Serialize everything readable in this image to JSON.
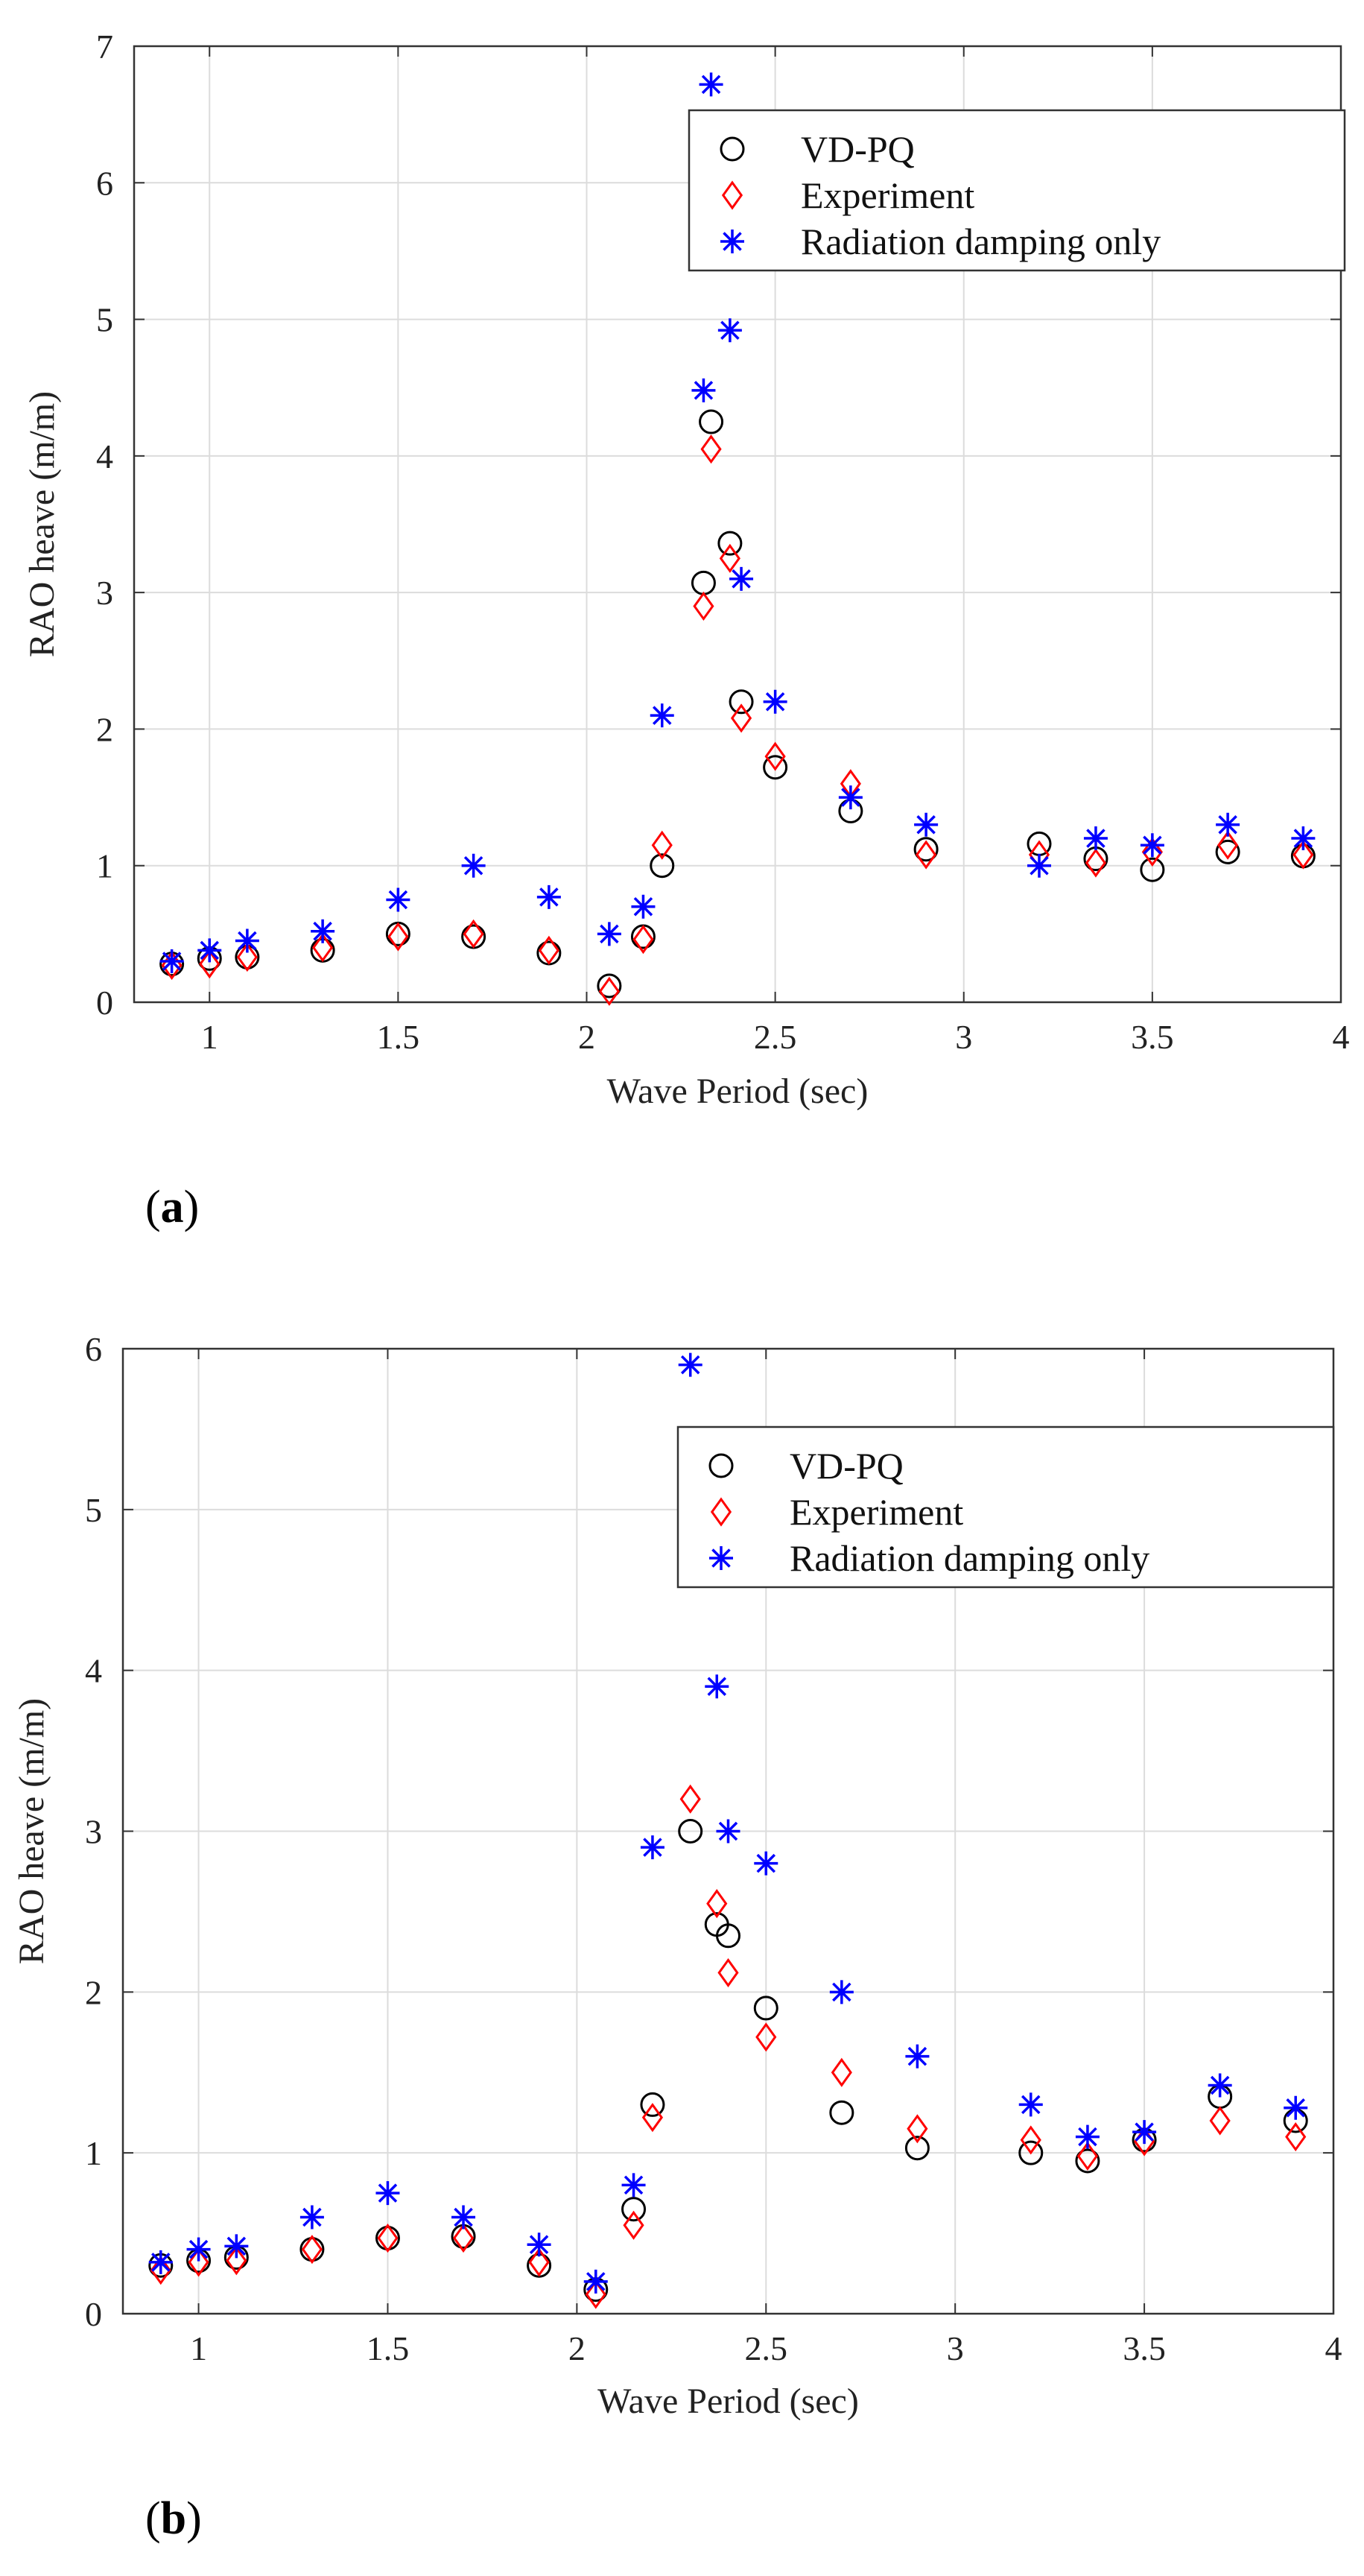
{
  "chart_data": [
    {
      "type": "scatter",
      "panel_label": "a",
      "xlabel": "Wave Period (sec)",
      "ylabel": "RAO heave (m/m)",
      "xlim": [
        0.8,
        4
      ],
      "ylim": [
        0,
        7
      ],
      "xticks": [
        1,
        1.5,
        2,
        2.5,
        3,
        3.5,
        4
      ],
      "yticks": [
        0,
        1,
        2,
        3,
        4,
        5,
        6,
        7
      ],
      "grid": true,
      "legend_position": "top-right",
      "series": [
        {
          "name": "VD-PQ",
          "marker": "circle",
          "color": "#000000",
          "points": [
            [
              0.9,
              0.28
            ],
            [
              1.0,
              0.32
            ],
            [
              1.1,
              0.33
            ],
            [
              1.3,
              0.38
            ],
            [
              1.5,
              0.5
            ],
            [
              1.7,
              0.48
            ],
            [
              1.9,
              0.36
            ],
            [
              2.06,
              0.12
            ],
            [
              2.15,
              0.48
            ],
            [
              2.2,
              1.0
            ],
            [
              2.31,
              3.07
            ],
            [
              2.33,
              4.25
            ],
            [
              2.38,
              3.36
            ],
            [
              2.41,
              2.2
            ],
            [
              2.5,
              1.72
            ],
            [
              2.7,
              1.4
            ],
            [
              2.9,
              1.12
            ],
            [
              3.2,
              1.16
            ],
            [
              3.35,
              1.05
            ],
            [
              3.5,
              0.97
            ],
            [
              3.7,
              1.1
            ],
            [
              3.9,
              1.07
            ]
          ]
        },
        {
          "name": "Experiment",
          "marker": "diamond",
          "color": "#ff0000",
          "points": [
            [
              0.9,
              0.27
            ],
            [
              1.0,
              0.28
            ],
            [
              1.1,
              0.33
            ],
            [
              1.3,
              0.4
            ],
            [
              1.5,
              0.48
            ],
            [
              1.7,
              0.5
            ],
            [
              1.9,
              0.38
            ],
            [
              2.06,
              0.08
            ],
            [
              2.15,
              0.46
            ],
            [
              2.2,
              1.15
            ],
            [
              2.31,
              2.9
            ],
            [
              2.33,
              4.05
            ],
            [
              2.38,
              3.25
            ],
            [
              2.41,
              2.08
            ],
            [
              2.5,
              1.8
            ],
            [
              2.7,
              1.6
            ],
            [
              2.9,
              1.08
            ],
            [
              3.2,
              1.08
            ],
            [
              3.35,
              1.02
            ],
            [
              3.5,
              1.1
            ],
            [
              3.7,
              1.15
            ],
            [
              3.9,
              1.08
            ]
          ]
        },
        {
          "name": "Radiation damping only",
          "marker": "asterisk",
          "color": "#0000ff",
          "points": [
            [
              0.9,
              0.3
            ],
            [
              1.0,
              0.38
            ],
            [
              1.1,
              0.45
            ],
            [
              1.3,
              0.52
            ],
            [
              1.5,
              0.75
            ],
            [
              1.7,
              1.0
            ],
            [
              1.9,
              0.77
            ],
            [
              2.06,
              0.5
            ],
            [
              2.15,
              0.7
            ],
            [
              2.2,
              2.1
            ],
            [
              2.31,
              4.48
            ],
            [
              2.33,
              6.72
            ],
            [
              2.38,
              4.92
            ],
            [
              2.41,
              3.1
            ],
            [
              2.5,
              2.2
            ],
            [
              2.7,
              1.5
            ],
            [
              2.9,
              1.3
            ],
            [
              3.2,
              1.0
            ],
            [
              3.35,
              1.2
            ],
            [
              3.5,
              1.15
            ],
            [
              3.7,
              1.3
            ],
            [
              3.9,
              1.2
            ]
          ]
        }
      ]
    },
    {
      "type": "scatter",
      "panel_label": "b",
      "xlabel": "Wave Period (sec)",
      "ylabel": "RAO heave (m/m)",
      "xlim": [
        0.8,
        4
      ],
      "ylim": [
        0,
        6
      ],
      "xticks": [
        1,
        1.5,
        2,
        2.5,
        3,
        3.5,
        4
      ],
      "yticks": [
        0,
        1,
        2,
        3,
        4,
        5,
        6
      ],
      "grid": true,
      "legend_position": "top-right",
      "series": [
        {
          "name": "VD-PQ",
          "marker": "circle",
          "color": "#000000",
          "points": [
            [
              0.9,
              0.3
            ],
            [
              1.0,
              0.33
            ],
            [
              1.1,
              0.35
            ],
            [
              1.3,
              0.4
            ],
            [
              1.5,
              0.47
            ],
            [
              1.7,
              0.48
            ],
            [
              1.9,
              0.3
            ],
            [
              2.05,
              0.15
            ],
            [
              2.15,
              0.65
            ],
            [
              2.2,
              1.3
            ],
            [
              2.3,
              3.0
            ],
            [
              2.37,
              2.42
            ],
            [
              2.4,
              2.35
            ],
            [
              2.5,
              1.9
            ],
            [
              2.7,
              1.25
            ],
            [
              2.9,
              1.03
            ],
            [
              3.2,
              1.0
            ],
            [
              3.35,
              0.95
            ],
            [
              3.5,
              1.08
            ],
            [
              3.7,
              1.35
            ],
            [
              3.9,
              1.2
            ]
          ]
        },
        {
          "name": "Experiment",
          "marker": "diamond",
          "color": "#ff0000",
          "points": [
            [
              0.9,
              0.27
            ],
            [
              1.0,
              0.32
            ],
            [
              1.1,
              0.33
            ],
            [
              1.3,
              0.4
            ],
            [
              1.5,
              0.47
            ],
            [
              1.7,
              0.47
            ],
            [
              1.9,
              0.32
            ],
            [
              2.05,
              0.12
            ],
            [
              2.15,
              0.55
            ],
            [
              2.2,
              1.22
            ],
            [
              2.3,
              3.2
            ],
            [
              2.37,
              2.55
            ],
            [
              2.4,
              2.12
            ],
            [
              2.5,
              1.72
            ],
            [
              2.7,
              1.5
            ],
            [
              2.9,
              1.15
            ],
            [
              3.2,
              1.08
            ],
            [
              3.35,
              0.98
            ],
            [
              3.5,
              1.07
            ],
            [
              3.7,
              1.2
            ],
            [
              3.9,
              1.1
            ]
          ]
        },
        {
          "name": "Radiation damping only",
          "marker": "asterisk",
          "color": "#0000ff",
          "points": [
            [
              0.9,
              0.32
            ],
            [
              1.0,
              0.4
            ],
            [
              1.1,
              0.42
            ],
            [
              1.3,
              0.6
            ],
            [
              1.5,
              0.75
            ],
            [
              1.7,
              0.6
            ],
            [
              1.9,
              0.43
            ],
            [
              2.05,
              0.2
            ],
            [
              2.15,
              0.8
            ],
            [
              2.2,
              2.9
            ],
            [
              2.3,
              5.9
            ],
            [
              2.37,
              3.9
            ],
            [
              2.4,
              3.0
            ],
            [
              2.5,
              2.8
            ],
            [
              2.7,
              2.0
            ],
            [
              2.9,
              1.6
            ],
            [
              3.2,
              1.3
            ],
            [
              3.35,
              1.1
            ],
            [
              3.5,
              1.13
            ],
            [
              3.7,
              1.42
            ],
            [
              3.9,
              1.28
            ]
          ]
        }
      ]
    }
  ]
}
